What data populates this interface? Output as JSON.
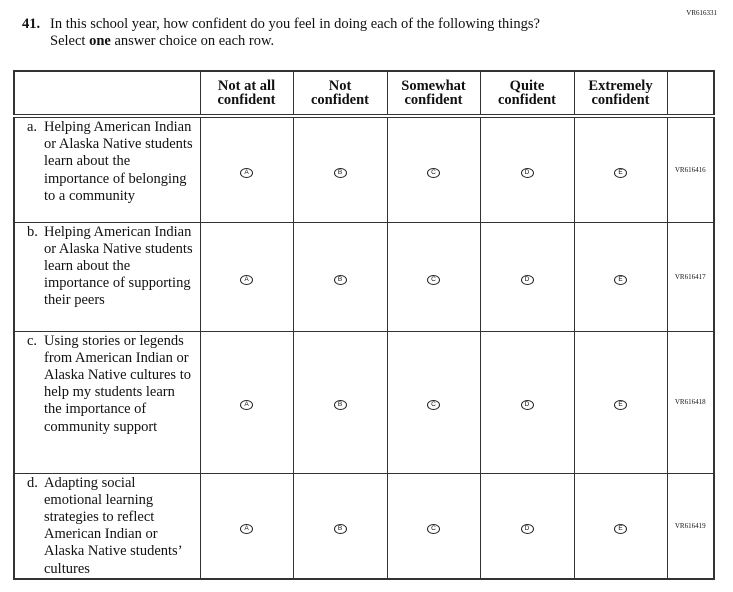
{
  "page_code": "VR616331",
  "question": {
    "number": "41.",
    "line1": "In this school year, how confident do you feel in doing each of the following things?",
    "line2_pre": "Select ",
    "line2_bold": "one",
    "line2_post": " answer choice on each row."
  },
  "columns": [
    [
      "Not at all",
      "confident"
    ],
    [
      "Not",
      "confident"
    ],
    [
      "Somewhat",
      "confident"
    ],
    [
      "Quite",
      "confident"
    ],
    [
      "Extremely",
      "confident"
    ]
  ],
  "options": [
    "A",
    "B",
    "C",
    "D",
    "E"
  ],
  "rows": [
    {
      "key": "a.",
      "text": "Helping American Indian or Alaska Native students learn about the importance of belonging to a community",
      "code": "VR616416"
    },
    {
      "key": "b.",
      "text": "Helping American Indian or Alaska Native students learn about the importance of supporting their peers",
      "code": "VR616417"
    },
    {
      "key": "c.",
      "text": "Using stories or legends from American Indian or Alaska Native cultures to help my students learn the importance of community support",
      "code": "VR616418"
    },
    {
      "key": "d.",
      "text": "Adapting social emotional learning strategies to reflect American Indian or Alaska Native students’ cultures",
      "code": "VR616419"
    }
  ]
}
